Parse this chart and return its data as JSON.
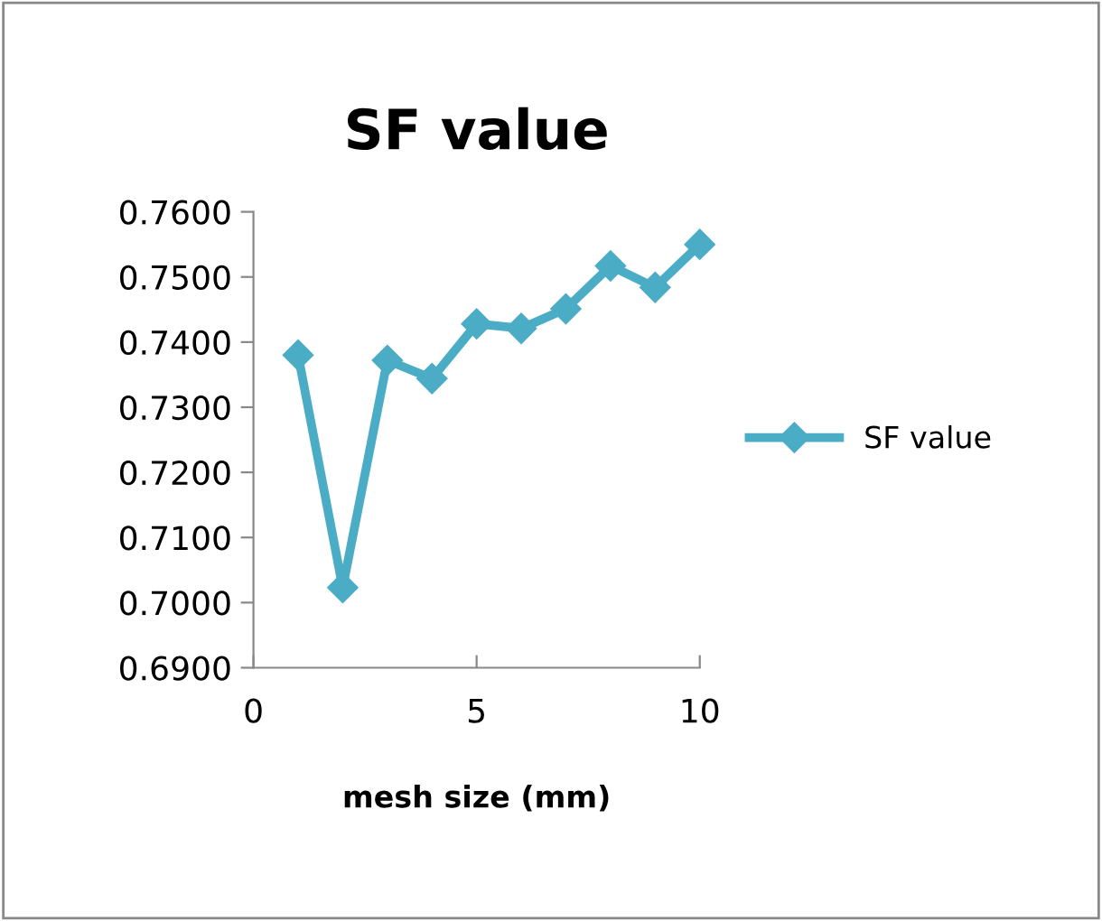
{
  "chart_data": {
    "type": "line",
    "title": "SF value",
    "xlabel": "mesh size (mm)",
    "x": [
      1,
      2,
      3,
      4,
      5,
      6,
      7,
      8,
      9,
      10
    ],
    "series": [
      {
        "name": "SF value",
        "color": "#4bacc6",
        "values": [
          0.738,
          0.7023,
          0.7372,
          0.7344,
          0.7428,
          0.7421,
          0.7451,
          0.7517,
          0.7484,
          0.755
        ]
      }
    ],
    "xlim": [
      0,
      10
    ],
    "xticks": [
      0,
      5,
      10
    ],
    "ylim": [
      0.69,
      0.76
    ],
    "yticks": [
      {
        "value": 0.69,
        "label": "0.6900"
      },
      {
        "value": 0.7,
        "label": "0.7000"
      },
      {
        "value": 0.71,
        "label": "0.7100"
      },
      {
        "value": 0.72,
        "label": "0.7200"
      },
      {
        "value": 0.73,
        "label": "0.7300"
      },
      {
        "value": 0.74,
        "label": "0.7400"
      },
      {
        "value": 0.75,
        "label": "0.7500"
      },
      {
        "value": 0.76,
        "label": "0.7600"
      }
    ],
    "grid": false,
    "legend": "right",
    "marker": "diamond",
    "line_style": "solid"
  }
}
